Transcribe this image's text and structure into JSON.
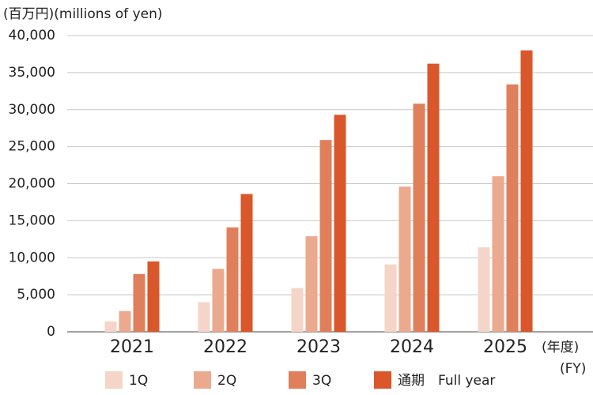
{
  "chart_data": {
    "type": "bar",
    "title": "(百万円)(millions of yen)",
    "x_label": "(年度)",
    "x_label_sub": "(FY)",
    "categories": [
      "2021",
      "2022",
      "2023",
      "2024",
      "2025"
    ],
    "series": [
      {
        "name": "1Q",
        "color": "#f5d5c8",
        "values": [
          1400,
          4000,
          5900,
          9100,
          11400
        ]
      },
      {
        "name": "2Q",
        "color": "#eba98e",
        "values": [
          2800,
          8500,
          12900,
          19600,
          21000
        ]
      },
      {
        "name": "3Q",
        "color": "#e07f5c",
        "values": [
          7800,
          14100,
          25900,
          30800,
          33400
        ]
      },
      {
        "name": "通期　Full year",
        "color": "#d9572a",
        "values": [
          9500,
          18600,
          29300,
          36200,
          38000
        ]
      }
    ],
    "ylim": [
      0,
      40000
    ],
    "yticks": [
      0,
      {
        "value": 5000,
        "label": "5,000"
      },
      {
        "value": 10000,
        "label": "10,000"
      },
      {
        "value": 15000,
        "label": "15,000"
      },
      {
        "value": 20000,
        "label": "20,000"
      },
      {
        "value": 25000,
        "label": "25,000"
      },
      {
        "value": 30000,
        "label": "30,000"
      },
      {
        "value": 35000,
        "label": "35,000"
      },
      {
        "value": 40000,
        "label": "40,000"
      }
    ],
    "grid": true
  }
}
